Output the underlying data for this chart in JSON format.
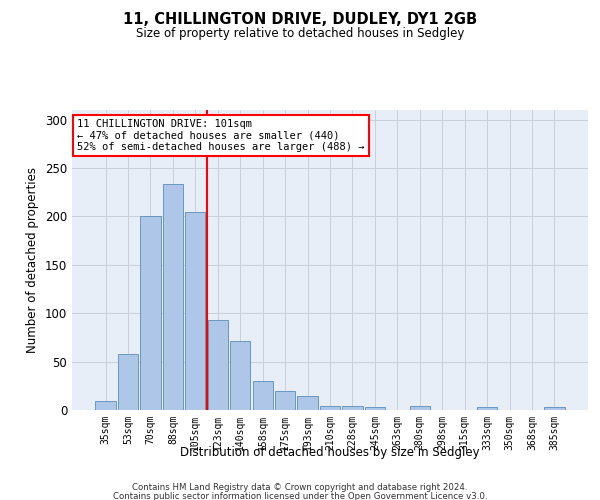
{
  "title": "11, CHILLINGTON DRIVE, DUDLEY, DY1 2GB",
  "subtitle": "Size of property relative to detached houses in Sedgley",
  "xlabel": "Distribution of detached houses by size in Sedgley",
  "ylabel": "Number of detached properties",
  "categories": [
    "35sqm",
    "53sqm",
    "70sqm",
    "88sqm",
    "105sqm",
    "123sqm",
    "140sqm",
    "158sqm",
    "175sqm",
    "193sqm",
    "210sqm",
    "228sqm",
    "245sqm",
    "263sqm",
    "280sqm",
    "298sqm",
    "315sqm",
    "333sqm",
    "350sqm",
    "368sqm",
    "385sqm"
  ],
  "bar_values": [
    9,
    58,
    200,
    234,
    205,
    93,
    71,
    30,
    20,
    14,
    4,
    4,
    3,
    0,
    4,
    0,
    0,
    3,
    0,
    0,
    3
  ],
  "bar_color": "#aec6e8",
  "bar_edge_color": "#5b8db8",
  "grid_color": "#c8d0dc",
  "bg_color": "#e8eef8",
  "vline_x": 4.5,
  "vline_color": "red",
  "annotation_text": "11 CHILLINGTON DRIVE: 101sqm\n← 47% of detached houses are smaller (440)\n52% of semi-detached houses are larger (488) →",
  "annotation_box_color": "white",
  "annotation_box_edge_color": "red",
  "ylim": [
    0,
    310
  ],
  "yticks": [
    0,
    50,
    100,
    150,
    200,
    250,
    300
  ],
  "footer1": "Contains HM Land Registry data © Crown copyright and database right 2024.",
  "footer2": "Contains public sector information licensed under the Open Government Licence v3.0."
}
